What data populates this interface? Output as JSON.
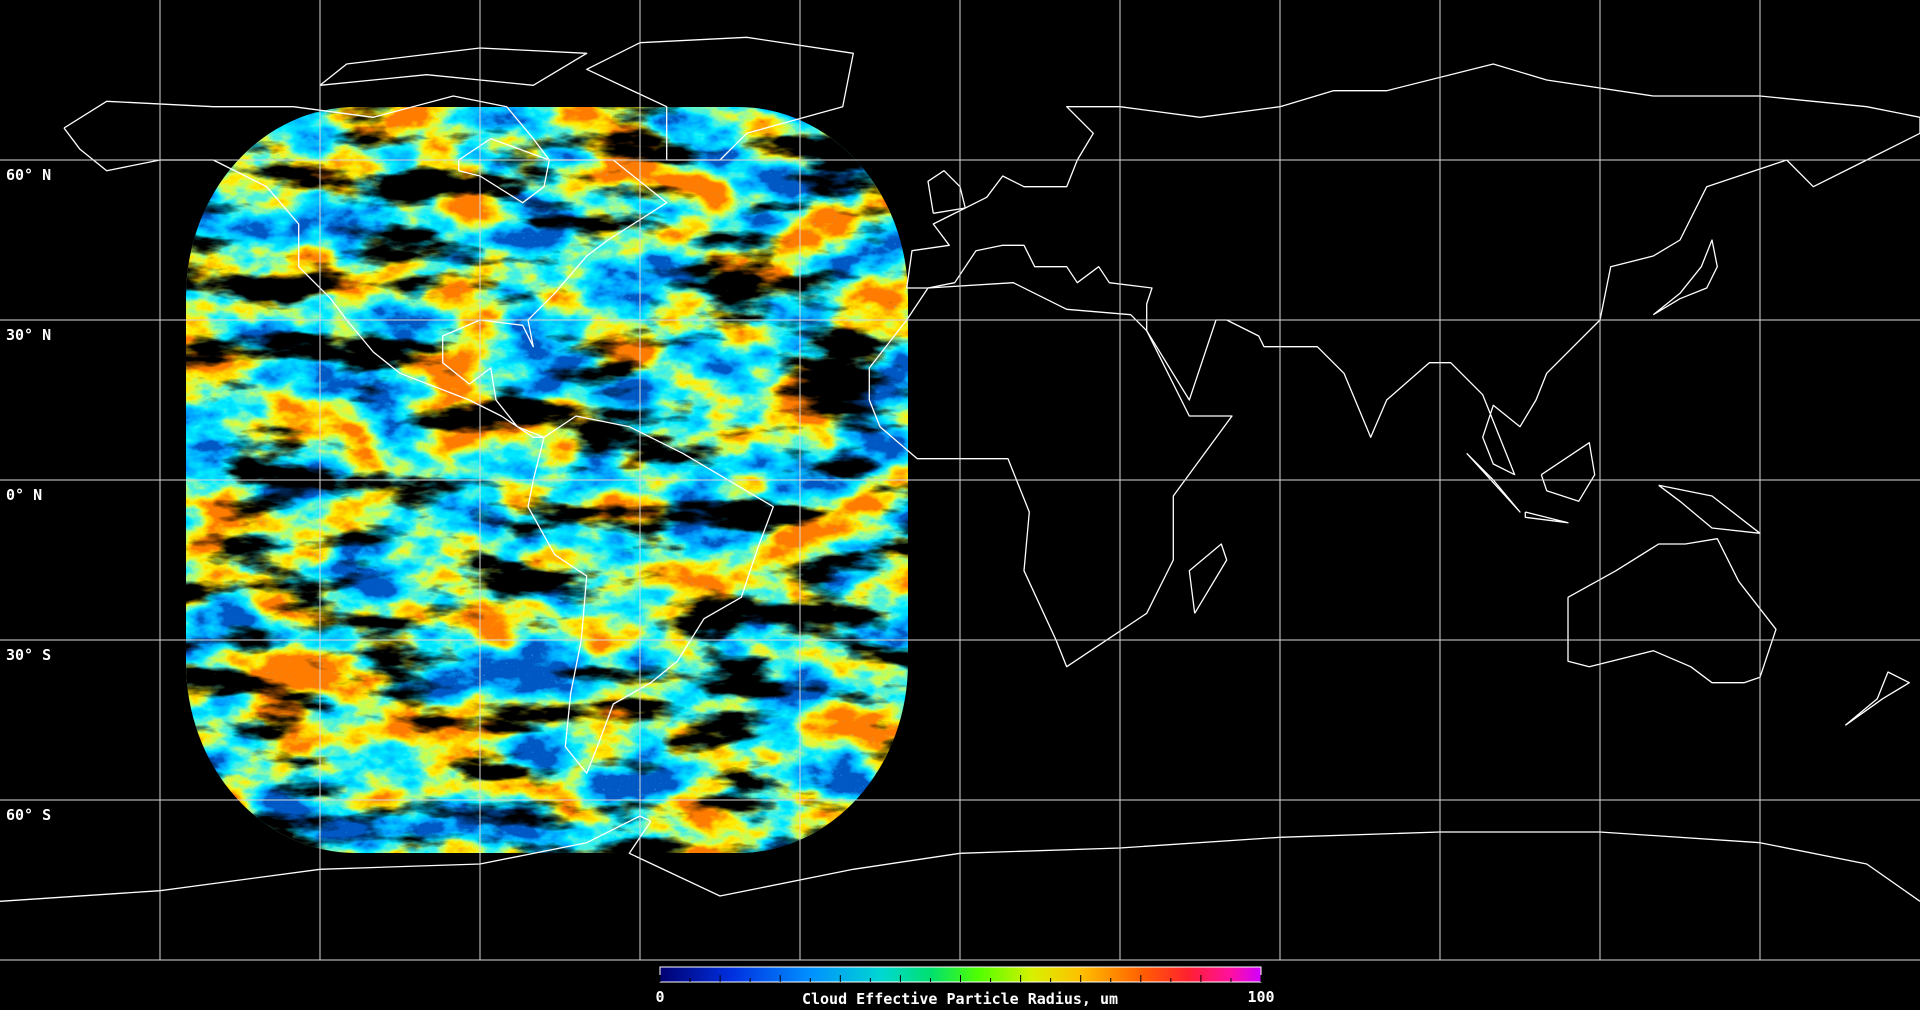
{
  "latitude_labels": [
    "60° N",
    "30° N",
    "0° N",
    "30° S",
    "60° S"
  ],
  "colorbar": {
    "min": 0,
    "max": 100,
    "label": "Cloud Effective Particle Radius, um"
  }
}
